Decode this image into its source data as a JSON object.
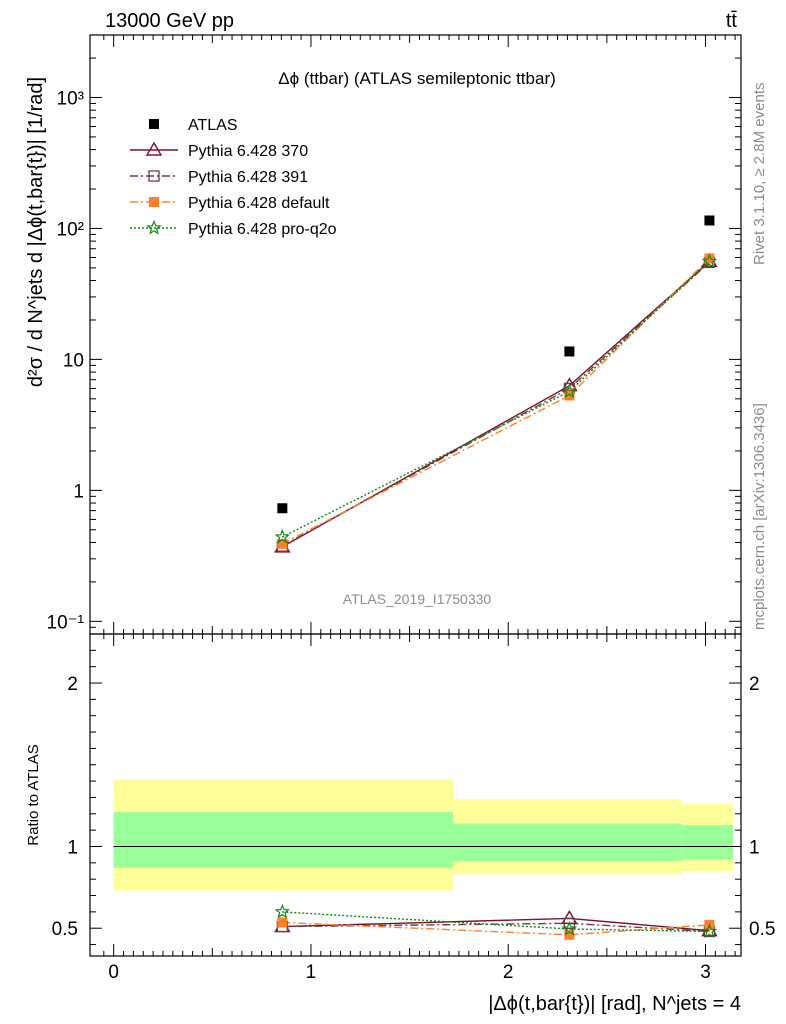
{
  "header": {
    "energy_label": "13000 GeV pp",
    "process_label": "tt̄"
  },
  "side": {
    "rivet_label": "Rivet 3.1.10, ≥ 2.8M events",
    "mcplots_label": "mcplots.cern.ch [arXiv:1306.3436]"
  },
  "chart_data": [
    {
      "type": "scatter",
      "title": "Δϕ (ttbar) (ATLAS semileptonic ttbar)",
      "watermark": "ATLAS_2019_I1750330",
      "ylabel": "d²σ / d N^jets d |Δϕ(t,bar{t})| [1/rad]",
      "yscale": "log",
      "ylim": [
        0.08,
        3000
      ],
      "xlim": [
        -0.12,
        3.18
      ],
      "y_tick_labels": [
        "10⁻¹",
        "1",
        "10",
        "10²",
        "10³"
      ],
      "grid": false,
      "legend_position": "top-left",
      "x": [
        0.855,
        2.31,
        3.02
      ],
      "series": [
        {
          "name": "ATLAS",
          "values": [
            0.73,
            11.5,
            115
          ],
          "color": "#000000",
          "marker": "filled-square"
        },
        {
          "name": "Pythia 6.428 370",
          "values": [
            0.37,
            6.3,
            56
          ],
          "color": "#7b1426",
          "marker": "open-triangle",
          "line": "solid"
        },
        {
          "name": "Pythia 6.428 391",
          "values": [
            0.375,
            6.0,
            55
          ],
          "color": "#6b3d4b",
          "marker": "open-square",
          "line": "dash-dot"
        },
        {
          "name": "Pythia 6.428 default",
          "values": [
            0.39,
            5.3,
            59
          ],
          "color": "#ff7f2a",
          "marker": "filled-square",
          "line": "dash-dot"
        },
        {
          "name": "Pythia 6.428 pro-q2o",
          "values": [
            0.44,
            5.7,
            56
          ],
          "color": "#118811",
          "marker": "star",
          "line": "dotted"
        }
      ]
    },
    {
      "type": "scatter",
      "ylabel": "Ratio to ATLAS",
      "xlabel": "|Δϕ(t,bar{t})| [rad], N^jets = 4",
      "ylim": [
        0.33,
        2.3
      ],
      "xlim": [
        -0.12,
        3.18
      ],
      "x_tick_labels": [
        "0",
        "1",
        "2",
        "3"
      ],
      "y_tick_labels": [
        "0.5",
        "1",
        "2"
      ],
      "grid": false,
      "bands": [
        {
          "x0": 0.0,
          "x1": 1.72,
          "yellow": [
            0.73,
            1.41
          ],
          "green": [
            0.87,
            1.21
          ]
        },
        {
          "x0": 1.72,
          "x1": 2.88,
          "yellow": [
            0.83,
            1.29
          ],
          "green": [
            0.91,
            1.14
          ]
        },
        {
          "x0": 2.88,
          "x1": 3.14,
          "yellow": [
            0.85,
            1.26
          ],
          "green": [
            0.92,
            1.13
          ]
        }
      ],
      "x": [
        0.855,
        2.31,
        3.02
      ],
      "series": [
        {
          "name": "Pythia 6.428 370",
          "values": [
            0.51,
            0.56,
            0.485
          ],
          "color": "#7b1426",
          "marker": "open-triangle",
          "line": "solid"
        },
        {
          "name": "Pythia 6.428 391",
          "values": [
            0.51,
            0.53,
            0.48
          ],
          "color": "#6b3d4b",
          "marker": "open-square",
          "line": "dash-dot"
        },
        {
          "name": "Pythia 6.428 default",
          "values": [
            0.535,
            0.46,
            0.52
          ],
          "color": "#ff7f2a",
          "marker": "filled-square",
          "line": "dash-dot"
        },
        {
          "name": "Pythia 6.428 pro-q2o",
          "values": [
            0.6,
            0.495,
            0.48
          ],
          "color": "#118811",
          "marker": "star",
          "line": "dotted"
        }
      ]
    }
  ]
}
